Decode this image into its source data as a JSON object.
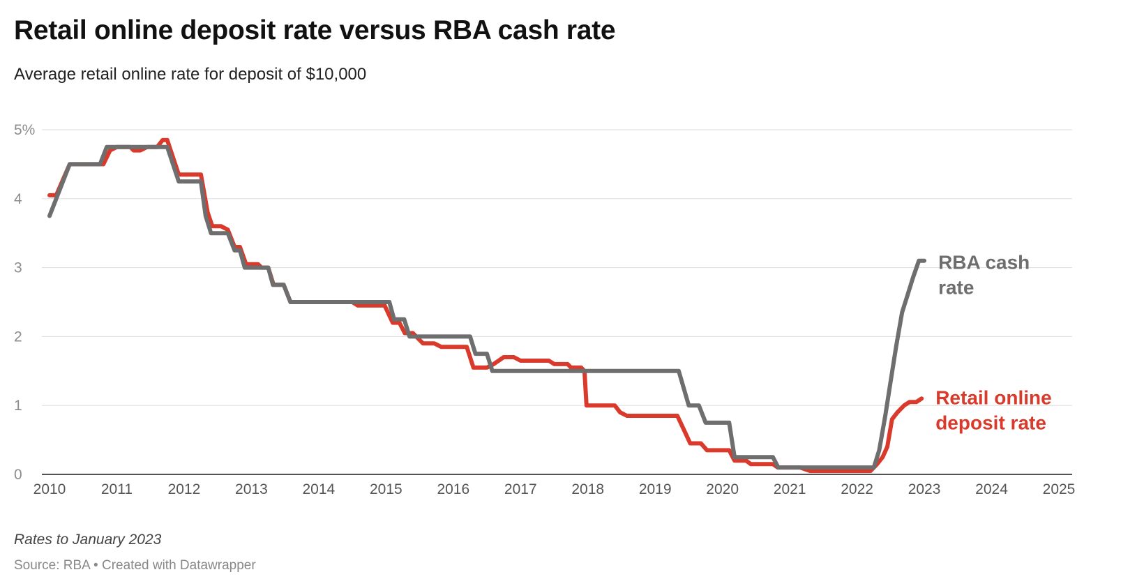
{
  "header": {
    "title": "Retail online deposit rate versus RBA cash rate",
    "subtitle": "Average retail online rate for deposit of $10,000"
  },
  "footer": {
    "note": "Rates to January 2023",
    "source": "Source: RBA • Created with Datawrapper"
  },
  "chart_data": {
    "type": "line",
    "title": "Retail online deposit rate versus RBA cash rate",
    "subtitle": "Average retail online rate for deposit of $10,000",
    "xlabel": "",
    "ylabel": "",
    "xlim": [
      2010,
      2025
    ],
    "ylim": [
      0,
      5
    ],
    "x_ticks": [
      "2010",
      "2011",
      "2012",
      "2013",
      "2014",
      "2015",
      "2016",
      "2017",
      "2018",
      "2019",
      "2020",
      "2021",
      "2022",
      "2023",
      "2024",
      "2025"
    ],
    "y_ticks": [
      {
        "value": 0,
        "label": "0"
      },
      {
        "value": 1,
        "label": "1"
      },
      {
        "value": 2,
        "label": "2"
      },
      {
        "value": 3,
        "label": "3"
      },
      {
        "value": 4,
        "label": "4"
      },
      {
        "value": 5,
        "label": "5%"
      }
    ],
    "grid": "horizontal",
    "legend": "inline labels at line ends",
    "series": [
      {
        "name": "Retail online deposit rate",
        "label_lines": [
          "Retail online",
          "deposit rate"
        ],
        "color": "#d93a2b",
        "points": [
          [
            2010.0,
            4.05
          ],
          [
            2010.1,
            4.05
          ],
          [
            2010.3,
            4.5
          ],
          [
            2010.8,
            4.5
          ],
          [
            2010.9,
            4.7
          ],
          [
            2011.0,
            4.75
          ],
          [
            2011.2,
            4.75
          ],
          [
            2011.25,
            4.7
          ],
          [
            2011.35,
            4.7
          ],
          [
            2011.45,
            4.75
          ],
          [
            2011.6,
            4.75
          ],
          [
            2011.68,
            4.85
          ],
          [
            2011.75,
            4.85
          ],
          [
            2011.92,
            4.35
          ],
          [
            2012.25,
            4.35
          ],
          [
            2012.35,
            3.8
          ],
          [
            2012.42,
            3.6
          ],
          [
            2012.55,
            3.6
          ],
          [
            2012.65,
            3.55
          ],
          [
            2012.75,
            3.3
          ],
          [
            2012.83,
            3.3
          ],
          [
            2012.92,
            3.05
          ],
          [
            2013.1,
            3.05
          ],
          [
            2013.15,
            3.0
          ],
          [
            2013.25,
            3.0
          ],
          [
            2013.33,
            2.75
          ],
          [
            2013.48,
            2.75
          ],
          [
            2013.58,
            2.5
          ],
          [
            2014.5,
            2.5
          ],
          [
            2014.58,
            2.45
          ],
          [
            2014.98,
            2.45
          ],
          [
            2015.1,
            2.2
          ],
          [
            2015.2,
            2.2
          ],
          [
            2015.28,
            2.05
          ],
          [
            2015.4,
            2.05
          ],
          [
            2015.55,
            1.9
          ],
          [
            2015.72,
            1.9
          ],
          [
            2015.82,
            1.85
          ],
          [
            2016.2,
            1.85
          ],
          [
            2016.3,
            1.55
          ],
          [
            2016.5,
            1.55
          ],
          [
            2016.6,
            1.6
          ],
          [
            2016.75,
            1.7
          ],
          [
            2016.9,
            1.7
          ],
          [
            2017.0,
            1.65
          ],
          [
            2017.42,
            1.65
          ],
          [
            2017.5,
            1.6
          ],
          [
            2017.7,
            1.6
          ],
          [
            2017.75,
            1.55
          ],
          [
            2017.9,
            1.55
          ],
          [
            2017.95,
            1.5
          ],
          [
            2017.98,
            1.0
          ],
          [
            2018.4,
            1.0
          ],
          [
            2018.48,
            0.9
          ],
          [
            2018.58,
            0.85
          ],
          [
            2019.33,
            0.85
          ],
          [
            2019.45,
            0.6
          ],
          [
            2019.52,
            0.45
          ],
          [
            2019.68,
            0.45
          ],
          [
            2019.77,
            0.35
          ],
          [
            2020.1,
            0.35
          ],
          [
            2020.18,
            0.2
          ],
          [
            2020.35,
            0.2
          ],
          [
            2020.42,
            0.15
          ],
          [
            2020.75,
            0.15
          ],
          [
            2020.82,
            0.1
          ],
          [
            2021.15,
            0.1
          ],
          [
            2021.3,
            0.05
          ],
          [
            2022.2,
            0.05
          ],
          [
            2022.3,
            0.15
          ],
          [
            2022.38,
            0.25
          ],
          [
            2022.45,
            0.4
          ],
          [
            2022.52,
            0.8
          ],
          [
            2022.6,
            0.9
          ],
          [
            2022.7,
            1.0
          ],
          [
            2022.78,
            1.05
          ],
          [
            2022.88,
            1.05
          ],
          [
            2022.96,
            1.1
          ]
        ]
      },
      {
        "name": "RBA cash rate",
        "label_lines": [
          "RBA cash",
          "rate"
        ],
        "color": "#6e6e6e",
        "points": [
          [
            2010.0,
            3.75
          ],
          [
            2010.3,
            4.5
          ],
          [
            2010.75,
            4.5
          ],
          [
            2010.85,
            4.75
          ],
          [
            2011.75,
            4.75
          ],
          [
            2011.92,
            4.25
          ],
          [
            2012.25,
            4.25
          ],
          [
            2012.32,
            3.75
          ],
          [
            2012.4,
            3.5
          ],
          [
            2012.65,
            3.5
          ],
          [
            2012.75,
            3.25
          ],
          [
            2012.83,
            3.25
          ],
          [
            2012.9,
            3.0
          ],
          [
            2013.25,
            3.0
          ],
          [
            2013.32,
            2.75
          ],
          [
            2013.48,
            2.75
          ],
          [
            2013.58,
            2.5
          ],
          [
            2015.05,
            2.5
          ],
          [
            2015.12,
            2.25
          ],
          [
            2015.27,
            2.25
          ],
          [
            2015.35,
            2.0
          ],
          [
            2016.25,
            2.0
          ],
          [
            2016.33,
            1.75
          ],
          [
            2016.5,
            1.75
          ],
          [
            2016.58,
            1.5
          ],
          [
            2019.35,
            1.5
          ],
          [
            2019.5,
            1.0
          ],
          [
            2019.65,
            1.0
          ],
          [
            2019.75,
            0.75
          ],
          [
            2020.1,
            0.75
          ],
          [
            2020.18,
            0.25
          ],
          [
            2020.75,
            0.25
          ],
          [
            2020.83,
            0.1
          ],
          [
            2022.25,
            0.1
          ],
          [
            2022.33,
            0.35
          ],
          [
            2022.42,
            0.85
          ],
          [
            2022.5,
            1.35
          ],
          [
            2022.58,
            1.85
          ],
          [
            2022.67,
            2.35
          ],
          [
            2022.75,
            2.6
          ],
          [
            2022.83,
            2.85
          ],
          [
            2022.92,
            3.1
          ],
          [
            2023.0,
            3.1
          ]
        ]
      }
    ]
  }
}
